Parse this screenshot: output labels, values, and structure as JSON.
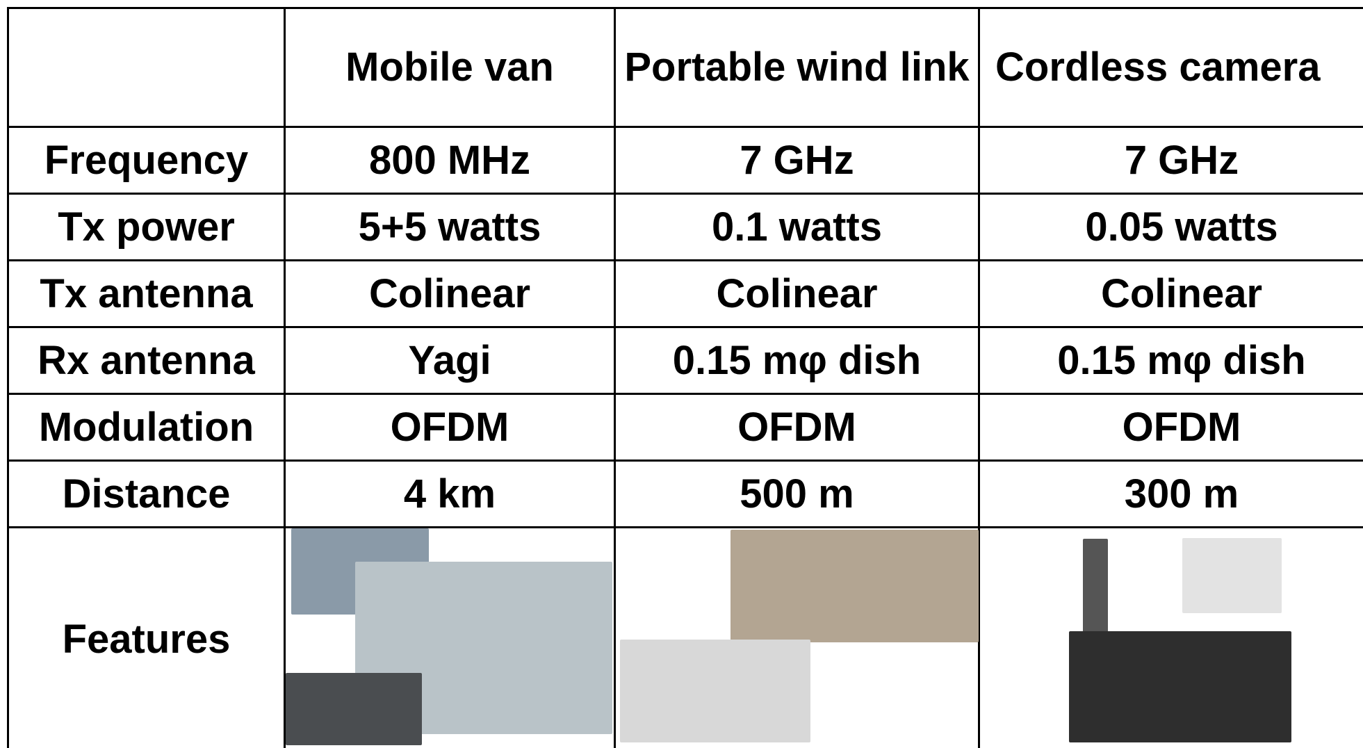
{
  "table": {
    "header": [
      "Mobile van",
      "Portable wind link",
      "Cordless camera"
    ],
    "rows": [
      {
        "label": "Frequency",
        "cells": [
          "800 MHz",
          "7 GHz",
          "7 GHz"
        ]
      },
      {
        "label": "Tx power",
        "cells": [
          "5+5 watts",
          "0.1 watts",
          "0.05 watts"
        ]
      },
      {
        "label": "Tx antenna",
        "cells": [
          "Colinear",
          "Colinear",
          "Colinear"
        ]
      },
      {
        "label": "Rx antenna",
        "cells": [
          "Yagi",
          "0.15 mφ dish",
          "0.15 mφ dish"
        ]
      },
      {
        "label": "Modulation",
        "cells": [
          "OFDM",
          "OFDM",
          "OFDM"
        ]
      },
      {
        "label": "Distance",
        "cells": [
          "4 km",
          "500 m",
          "300 m"
        ]
      }
    ],
    "features_label": "Features"
  }
}
